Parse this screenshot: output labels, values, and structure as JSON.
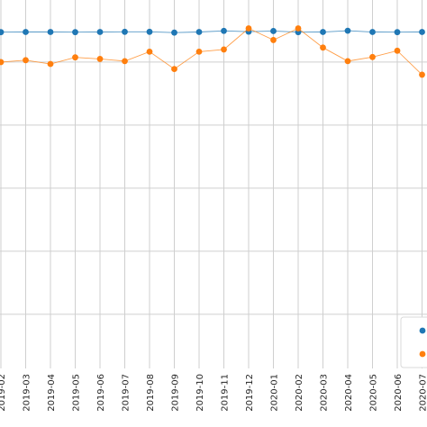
{
  "chart_data": {
    "type": "line",
    "x": [
      "2019-02",
      "2019-03",
      "2019-04",
      "2019-05",
      "2019-06",
      "2019-07",
      "2019-08",
      "2019-09",
      "2019-10",
      "2019-11",
      "2019-12",
      "2020-01",
      "2020-02",
      "2020-03",
      "2020-04",
      "2020-05",
      "2020-06",
      "2020-07"
    ],
    "series": [
      {
        "color": "#1f77b4",
        "values": [
          0.95,
          0.955,
          0.955,
          0.95,
          0.955,
          0.96,
          0.96,
          0.935,
          0.955,
          0.99,
          0.965,
          0.985,
          0.95,
          0.955,
          0.995,
          0.955,
          0.95,
          0.955
        ]
      },
      {
        "color": "#ff7f0e",
        "values": [
          0.0,
          0.06,
          -0.06,
          0.15,
          0.1,
          0.03,
          0.33,
          -0.22,
          0.33,
          0.4,
          1.07,
          0.7,
          1.07,
          0.46,
          0.03,
          0.16,
          0.36,
          -0.4
        ]
      }
    ],
    "xlabel": "",
    "ylabel": "",
    "ylim": [
      -9.72,
      1.97
    ],
    "grid": true,
    "legend_position": "lower-right",
    "show_y_tick_labels": false
  }
}
